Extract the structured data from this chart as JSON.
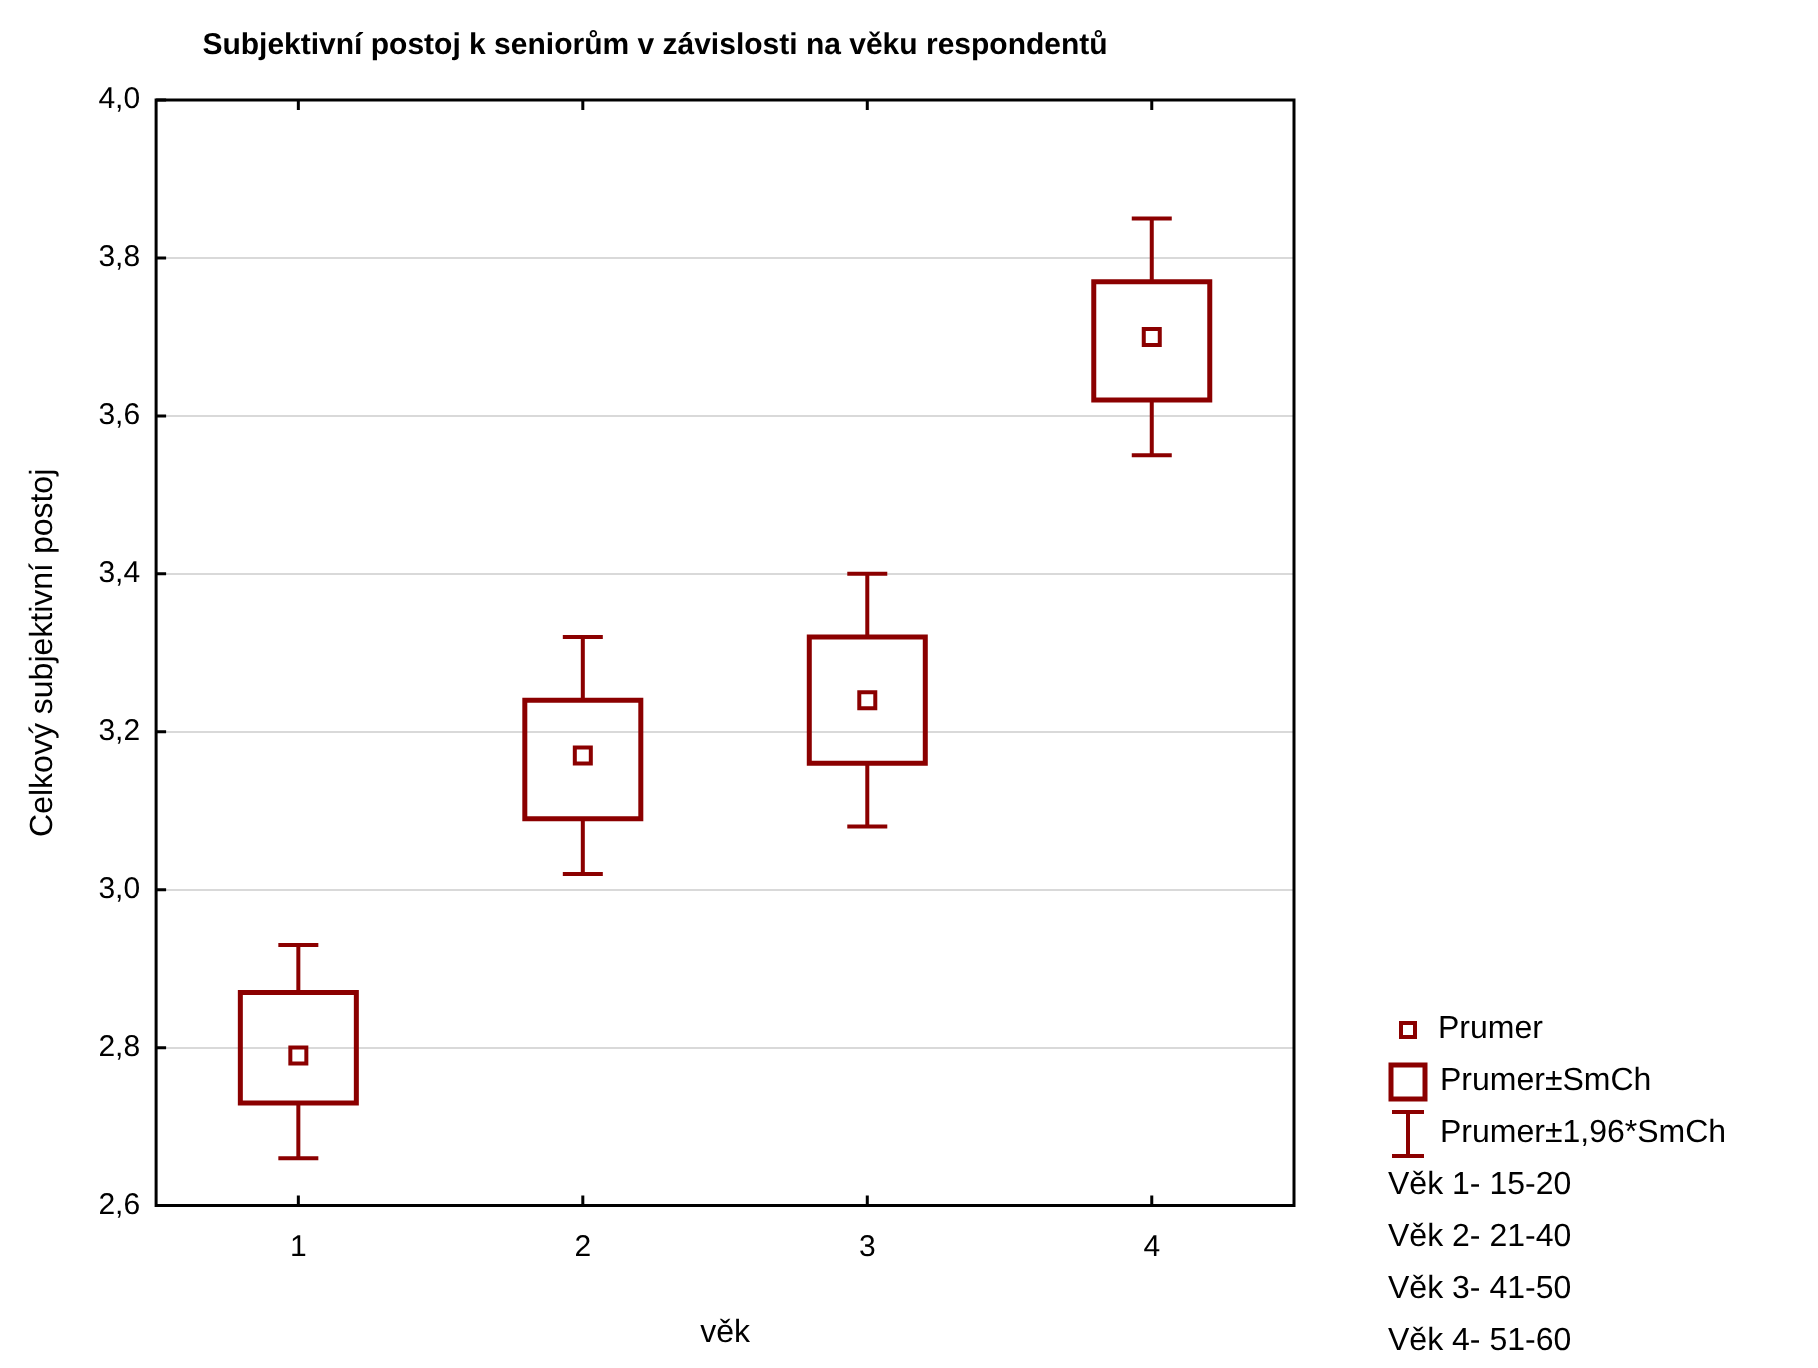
{
  "chart_data": {
    "type": "box",
    "title": "Subjektivní postoj k seniorům v závislosti na věku respondentů",
    "xlabel": "věk",
    "ylabel": "Celkový subjektivní postoj",
    "categories": [
      "1",
      "2",
      "3",
      "4"
    ],
    "color": "#8b0000",
    "boxes": [
      {
        "low": 2.66,
        "q1": 2.73,
        "q3": 2.87,
        "high": 2.93,
        "mean": 2.79
      },
      {
        "low": 3.02,
        "q1": 3.09,
        "q3": 3.24,
        "high": 3.32,
        "mean": 3.17
      },
      {
        "low": 3.08,
        "q1": 3.16,
        "q3": 3.32,
        "high": 3.4,
        "mean": 3.24
      },
      {
        "low": 3.55,
        "q1": 3.62,
        "q3": 3.77,
        "high": 3.85,
        "mean": 3.7
      }
    ],
    "ylim": [
      2.6,
      4.0
    ],
    "yticks": [
      {
        "value": 2.6,
        "label": "2,6"
      },
      {
        "value": 2.8,
        "label": "2,8"
      },
      {
        "value": 3.0,
        "label": "3,0"
      },
      {
        "value": 3.2,
        "label": "3,2"
      },
      {
        "value": 3.4,
        "label": "3,4"
      },
      {
        "value": 3.6,
        "label": "3,6"
      },
      {
        "value": 3.8,
        "label": "3,8"
      },
      {
        "value": 4.0,
        "label": "4,0"
      }
    ],
    "grid": "y",
    "annotations": [
      "Prumer",
      "Prumer±SmCh",
      "Prumer±1,96*SmCh",
      "Věk 1- 15-20",
      "Věk 2- 21-40",
      "Věk 3- 41-50",
      "Věk 4- 51-60"
    ]
  }
}
